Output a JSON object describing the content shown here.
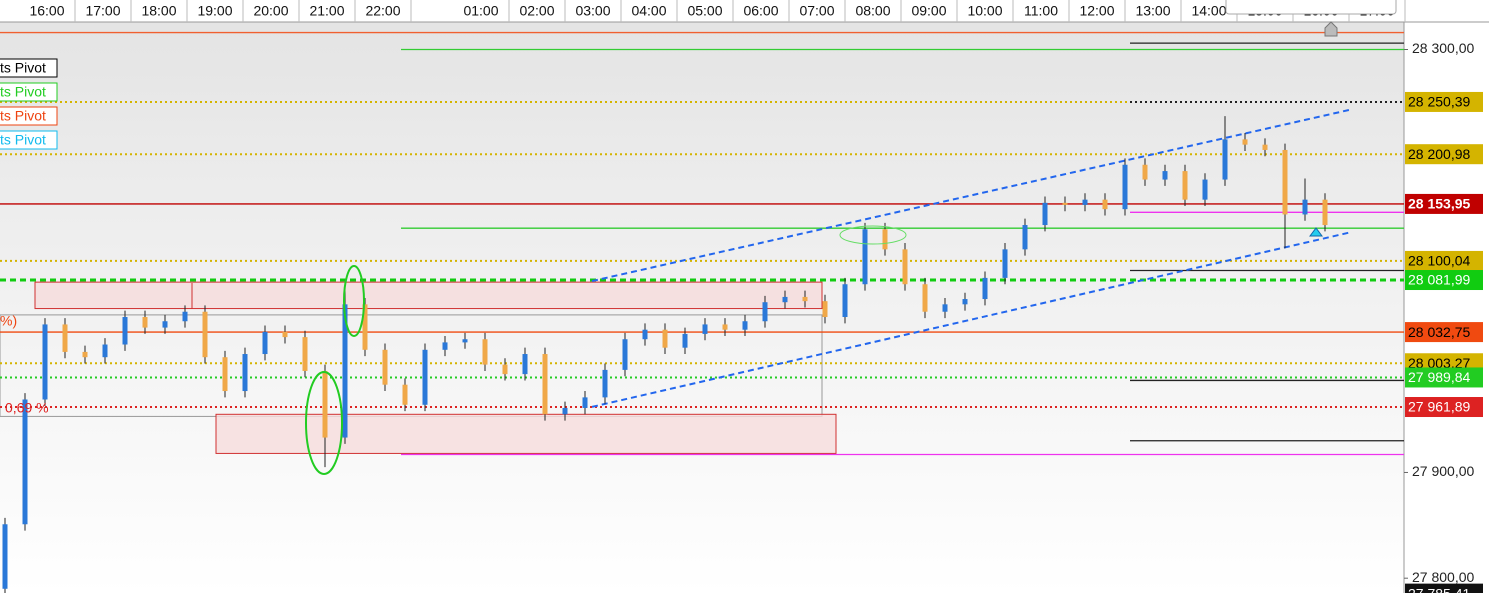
{
  "chart_data": {
    "type": "candlestick",
    "categories": [
      "16:00",
      "17:00",
      "18:00",
      "19:00",
      "20:00",
      "21:00",
      "22:00",
      "01:00",
      "02:00",
      "03:00",
      "04:00",
      "05:00",
      "06:00",
      "07:00",
      "08:00",
      "09:00",
      "10:00",
      "11:00",
      "12:00",
      "13:00",
      "14:00",
      "15:00",
      "16:00",
      "17:00"
    ],
    "ylim": [
      27786,
      28326
    ],
    "yticks": [
      {
        "value": 28300,
        "label": "28 300,00"
      },
      {
        "value": 27900,
        "label": "27 900,00"
      },
      {
        "value": 27800,
        "label": "27 800,00"
      }
    ],
    "up_color": "#2a78d8",
    "down_color": "#f0a848",
    "candles": [
      [
        27790,
        27857,
        27784,
        27851
      ],
      [
        27851,
        27975,
        27845,
        27969
      ],
      [
        27969,
        28046,
        27963,
        28040
      ],
      [
        28040,
        28046,
        28008,
        28014
      ],
      [
        28014,
        28020,
        28003,
        28009
      ],
      [
        28009,
        28027,
        28003,
        28021
      ],
      [
        28021,
        28053,
        28015,
        28047
      ],
      [
        28047,
        28053,
        28031,
        28037
      ],
      [
        28037,
        28049,
        28031,
        28043
      ],
      [
        28043,
        28058,
        28037,
        28052
      ],
      [
        28052,
        28058,
        28003,
        28009
      ],
      [
        28009,
        28015,
        27971,
        27977
      ],
      [
        27977,
        28018,
        27971,
        28012
      ],
      [
        28012,
        28039,
        28006,
        28033
      ],
      [
        28033,
        28039,
        28022,
        28028
      ],
      [
        28028,
        28034,
        27990,
        27996
      ],
      [
        27996,
        28002,
        27905,
        27933
      ],
      [
        27933,
        28080,
        27927,
        28059
      ],
      [
        28059,
        28065,
        28010,
        28016
      ],
      [
        28016,
        28022,
        27977,
        27983
      ],
      [
        27983,
        27989,
        27958,
        27964
      ],
      [
        27964,
        28022,
        27958,
        28016
      ],
      [
        28016,
        28029,
        28010,
        28023
      ],
      [
        28023,
        28032,
        28017,
        28026
      ],
      [
        28026,
        28032,
        27996,
        28002
      ],
      [
        28002,
        28008,
        27987,
        27993
      ],
      [
        27993,
        28018,
        27987,
        28012
      ],
      [
        28012,
        28018,
        27949,
        27955
      ],
      [
        27955,
        27967,
        27949,
        27961
      ],
      [
        27961,
        27977,
        27955,
        27971
      ],
      [
        27971,
        28003,
        27965,
        27997
      ],
      [
        27997,
        28032,
        27991,
        28026
      ],
      [
        28026,
        28041,
        28020,
        28035
      ],
      [
        28035,
        28041,
        28012,
        28018
      ],
      [
        28018,
        28037,
        28012,
        28031
      ],
      [
        28031,
        28046,
        28025,
        28040
      ],
      [
        28040,
        28046,
        28029,
        28035
      ],
      [
        28035,
        28049,
        28029,
        28043
      ],
      [
        28043,
        28067,
        28037,
        28061
      ],
      [
        28061,
        28072,
        28055,
        28066
      ],
      [
        28066,
        28072,
        28056,
        28062
      ],
      [
        28062,
        28068,
        28041,
        28047
      ],
      [
        28047,
        28084,
        28041,
        28078
      ],
      [
        28078,
        28136,
        28072,
        28130
      ],
      [
        28130,
        28136,
        28105,
        28111
      ],
      [
        28111,
        28117,
        28072,
        28078
      ],
      [
        28078,
        28084,
        28046,
        28052
      ],
      [
        28052,
        28065,
        28046,
        28059
      ],
      [
        28059,
        28070,
        28053,
        28064
      ],
      [
        28064,
        28090,
        28058,
        28084
      ],
      [
        28084,
        28117,
        28078,
        28111
      ],
      [
        28111,
        28140,
        28105,
        28134
      ],
      [
        28134,
        28161,
        28128,
        28155
      ],
      [
        28155,
        28161,
        28147,
        28153
      ],
      [
        28153,
        28164,
        28147,
        28158
      ],
      [
        28158,
        28164,
        28143,
        28149
      ],
      [
        28149,
        28197,
        28143,
        28191
      ],
      [
        28191,
        28197,
        28171,
        28177
      ],
      [
        28177,
        28191,
        28171,
        28185
      ],
      [
        28185,
        28191,
        28152,
        28158
      ],
      [
        28158,
        28183,
        28152,
        28177
      ],
      [
        28177,
        28237,
        28171,
        28215
      ],
      [
        28215,
        28221,
        28204,
        28210
      ],
      [
        28210,
        28216,
        28199,
        28205
      ],
      [
        28205,
        28211,
        28112,
        28144
      ],
      [
        28144,
        28178,
        28138,
        28158
      ],
      [
        28158,
        28164,
        28128,
        28134
      ]
    ],
    "levels": [
      {
        "value": 28316,
        "color": "#f06030",
        "style": "solid"
      },
      {
        "value": 28306,
        "color": "#222222",
        "style": "solid"
      },
      {
        "value": 28300,
        "color": "#33cc33",
        "style": "solid"
      },
      {
        "value": 28250.39,
        "label": "28 250,39",
        "color": "#d4b400",
        "style": "dotted",
        "label_color": "#000000"
      },
      {
        "value": 28250.39,
        "color": "#222222",
        "style": "dotted"
      },
      {
        "value": 28200.98,
        "label": "28 200,98",
        "color": "#d4b400",
        "style": "dotted",
        "label_color": "#000000"
      },
      {
        "value": 28153.95,
        "label": "28 153,95",
        "color": "#c00000",
        "style": "solid",
        "label_color": "#ffffff"
      },
      {
        "value": 28146,
        "color": "#ee33ee",
        "style": "solid"
      },
      {
        "value": 28131,
        "color": "#33cc33",
        "style": "solid"
      },
      {
        "value": 28100.04,
        "label": "28 100,04",
        "color": "#d4b400",
        "style": "dotted",
        "label_color": "#000000"
      },
      {
        "value": 28091,
        "color": "#222222",
        "style": "solid"
      },
      {
        "value": 28081.99,
        "label": "28 081,99",
        "color": "#11cc11",
        "style": "dashed",
        "label_color": "#ffffff"
      },
      {
        "value": 28032.75,
        "label": "28 032,75",
        "color": "#f04a10",
        "style": "solid",
        "label_color": "#000000"
      },
      {
        "value": 28003.27,
        "label": "28 003,27",
        "color": "#d4b400",
        "style": "dotted",
        "label_color": "#000000"
      },
      {
        "value": 27989.84,
        "label": "27 989,84",
        "color": "#22cc22",
        "style": "dotted",
        "label_color": "#ffffff"
      },
      {
        "value": 27987,
        "color": "#222222",
        "style": "solid"
      },
      {
        "value": 27961.89,
        "label": "27 961,89",
        "color": "#dd2222",
        "style": "dotted",
        "label_color": "#ffffff"
      },
      {
        "value": 27930,
        "color": "#222222",
        "style": "solid"
      },
      {
        "value": 27917,
        "color": "#ee33ee",
        "style": "solid"
      },
      {
        "value": 27785.41,
        "label": "27 785,41",
        "color": "#111111",
        "style": "none",
        "label_color": "#ffffff"
      }
    ],
    "zones": [
      [
        28080,
        28055
      ],
      [
        28049,
        27953
      ],
      [
        27955,
        27918
      ]
    ],
    "trendlines": [
      [
        28081,
        28243
      ],
      [
        27962,
        28127
      ]
    ],
    "pivot_labels": [
      {
        "text": "ts Pivot",
        "color": "#000000"
      },
      {
        "text": "ts Pivot",
        "color": "#22cc22"
      },
      {
        "text": "ts Pivot",
        "color": "#ee4411"
      },
      {
        "text": "ts Pivot",
        "color": "#11bbee"
      }
    ],
    "annotations": [
      "%)",
      "0,69 %"
    ]
  }
}
